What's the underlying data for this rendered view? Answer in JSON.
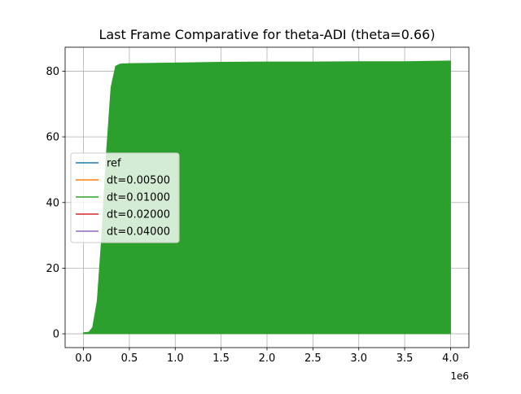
{
  "chart_data": {
    "type": "area",
    "title": "Last Frame Comparative for theta-ADI (theta=0.66)",
    "xlabel": "",
    "ylabel": "",
    "x_offset_label": "1e6",
    "xlim": [
      -200000,
      4200000
    ],
    "ylim": [
      -4.2,
      87.3
    ],
    "x_ticks": [
      0,
      0.5,
      1.0,
      1.5,
      2.0,
      2.5,
      3.0,
      3.5,
      4.0
    ],
    "x_tick_labels": [
      "0.0",
      "0.5",
      "1.0",
      "1.5",
      "2.0",
      "2.5",
      "3.0",
      "3.5",
      "4.0"
    ],
    "y_ticks": [
      0,
      20,
      40,
      60,
      80
    ],
    "y_tick_labels": [
      "0",
      "20",
      "40",
      "60",
      "80"
    ],
    "grid": true,
    "legend_position": "center-left",
    "series": [
      {
        "name": "ref",
        "color": "#1f77b4"
      },
      {
        "name": "dt=0.00500",
        "color": "#ff7f0e"
      },
      {
        "name": "dt=0.01000",
        "color": "#2ca02c",
        "filled": true,
        "lower": 0,
        "x": [
          0,
          60000,
          100000,
          150000,
          200000,
          250000,
          300000,
          350000,
          400000,
          500000,
          1000000,
          1500000,
          2000000,
          2500000,
          3000000,
          3500000,
          4000000
        ],
        "y": [
          0.3,
          0.5,
          2,
          10,
          30,
          55,
          75,
          81.5,
          82.2,
          82.3,
          82.5,
          82.7,
          82.8,
          82.8,
          82.9,
          82.9,
          83.1
        ]
      },
      {
        "name": "dt=0.02000",
        "color": "#d62728"
      },
      {
        "name": "dt=0.04000",
        "color": "#9467bd"
      }
    ]
  }
}
